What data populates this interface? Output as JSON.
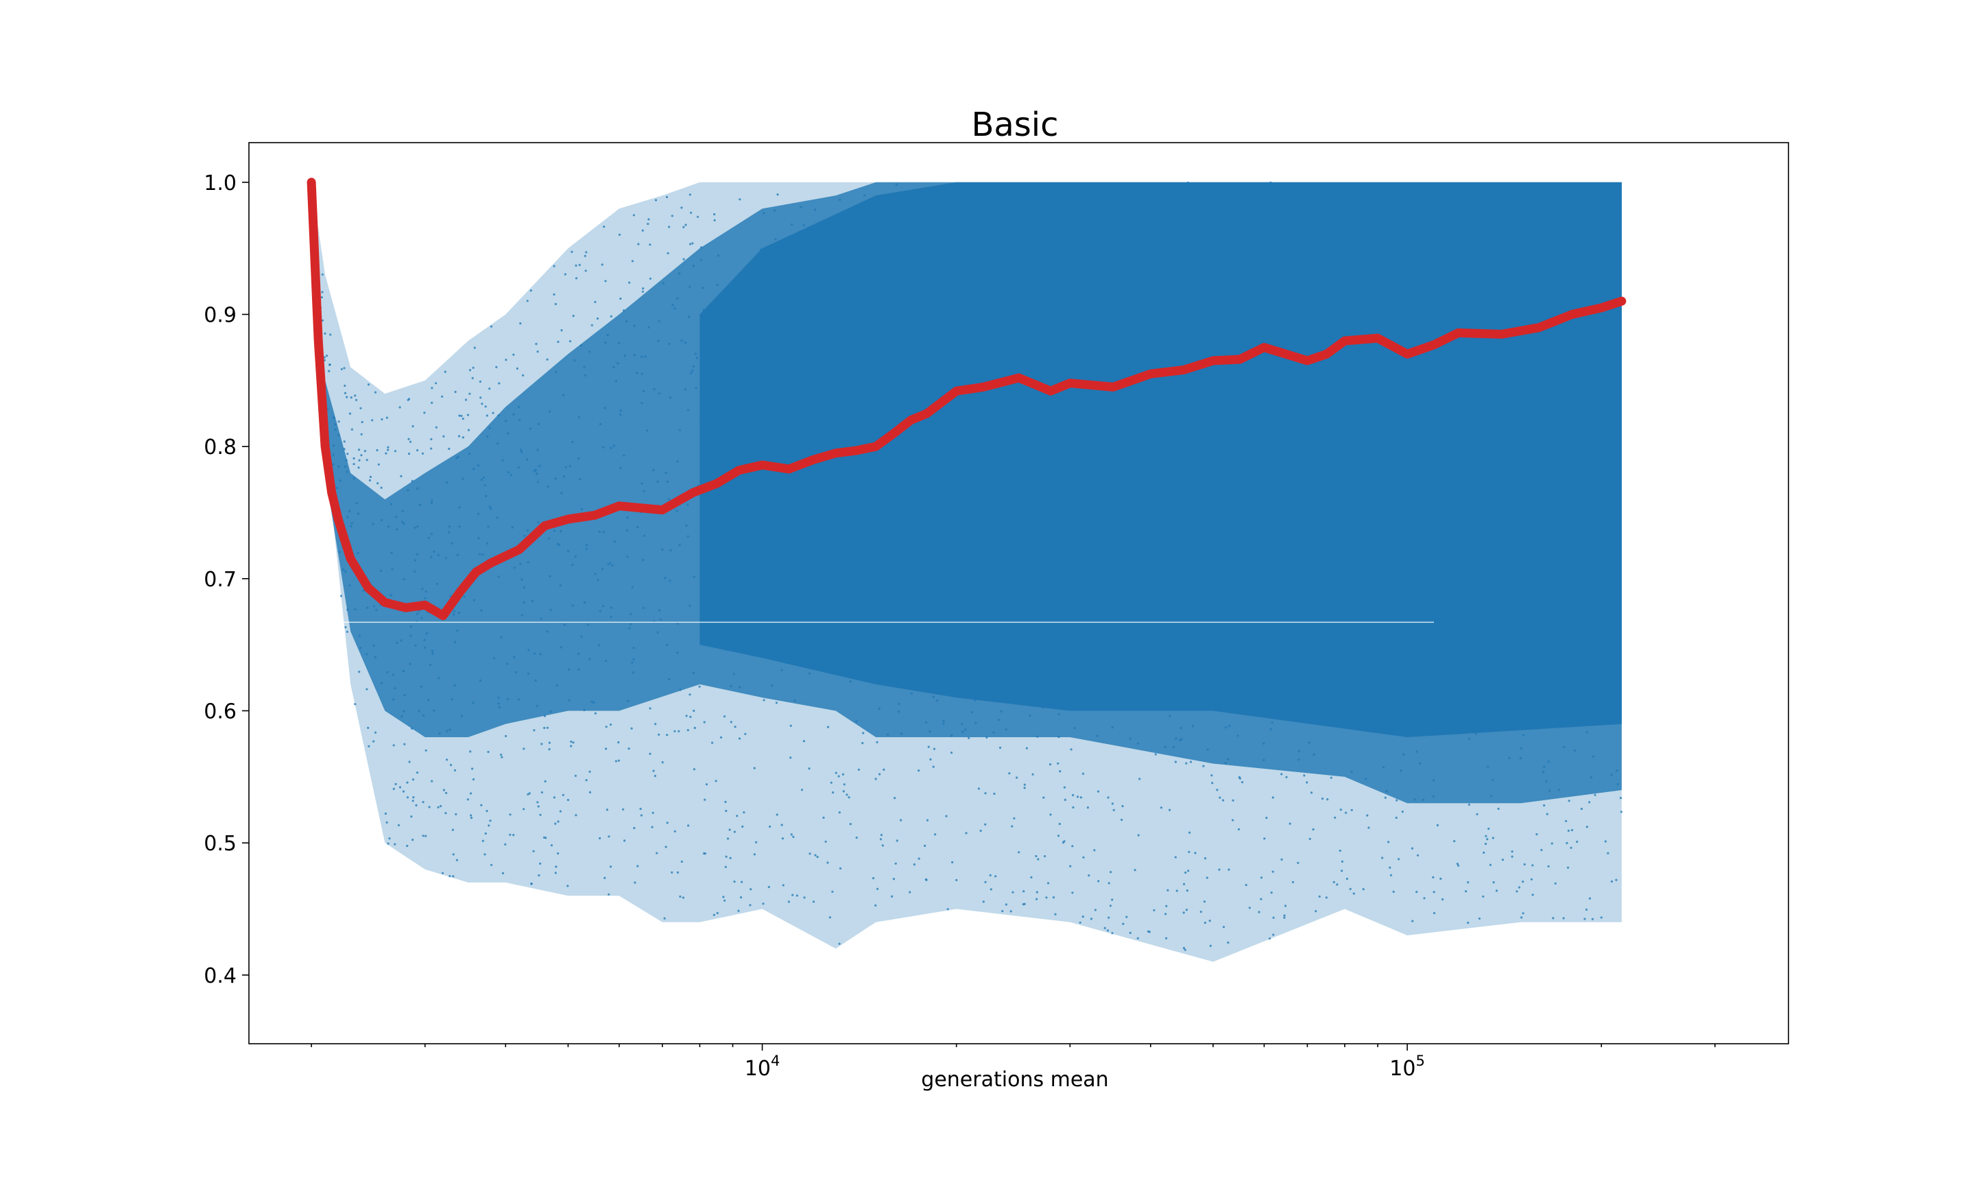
{
  "chart_data": {
    "type": "scatter",
    "title": "Basic",
    "xlabel": "generations mean",
    "ylabel": "",
    "xscale": "log",
    "xlim": [
      1600,
      390000
    ],
    "ylim": [
      0.348,
      1.03
    ],
    "x_ticks": [
      {
        "value": 10000,
        "base": "10",
        "exp": "4"
      },
      {
        "value": 100000,
        "base": "10",
        "exp": "5"
      }
    ],
    "y_ticks": [
      {
        "value": 0.4,
        "label": "0.4"
      },
      {
        "value": 0.5,
        "label": "0.5"
      },
      {
        "value": 0.6,
        "label": "0.6"
      },
      {
        "value": 0.7,
        "label": "0.7"
      },
      {
        "value": 0.8,
        "label": "0.8"
      },
      {
        "value": 0.9,
        "label": "0.9"
      },
      {
        "value": 1.0,
        "label": "1.0"
      }
    ],
    "grid": false,
    "legend": "none",
    "colors": {
      "scatter": "#1f77b4",
      "trend": "#d62728"
    },
    "scatter_series": {
      "name": "",
      "envelope": {
        "x": [
          2000,
          2100,
          2300,
          2600,
          3000,
          3500,
          4000,
          5000,
          6000,
          7000,
          8000,
          10000,
          13000,
          15000,
          20000,
          30000,
          50000,
          80000,
          100000,
          150000,
          215000
        ],
        "upper": [
          1.0,
          0.93,
          0.86,
          0.84,
          0.85,
          0.88,
          0.9,
          0.95,
          0.98,
          0.99,
          1.0,
          1.0,
          1.0,
          1.0,
          1.0,
          1.0,
          1.0,
          1.0,
          1.0,
          1.0,
          1.0
        ],
        "lower": [
          1.0,
          0.8,
          0.62,
          0.5,
          0.48,
          0.47,
          0.47,
          0.46,
          0.46,
          0.44,
          0.44,
          0.45,
          0.42,
          0.44,
          0.45,
          0.44,
          0.41,
          0.45,
          0.43,
          0.44,
          0.44
        ]
      },
      "dense_band": {
        "x": [
          2100,
          2300,
          2600,
          3000,
          3500,
          4000,
          5000,
          6000,
          8000,
          10000,
          13000,
          15000,
          20000,
          30000,
          50000,
          80000,
          100000,
          150000,
          215000
        ],
        "upper": [
          0.85,
          0.78,
          0.76,
          0.78,
          0.8,
          0.83,
          0.87,
          0.9,
          0.95,
          0.98,
          0.99,
          1.0,
          1.0,
          1.0,
          1.0,
          1.0,
          1.0,
          1.0,
          1.0
        ],
        "lower": [
          0.78,
          0.66,
          0.6,
          0.58,
          0.58,
          0.59,
          0.6,
          0.6,
          0.62,
          0.61,
          0.6,
          0.58,
          0.58,
          0.58,
          0.56,
          0.55,
          0.53,
          0.53,
          0.54
        ]
      },
      "horizontal_gap_y": 0.667
    },
    "trend_series": {
      "name": "",
      "x": [
        2000,
        2050,
        2100,
        2150,
        2200,
        2300,
        2450,
        2600,
        2800,
        3000,
        3200,
        3400,
        3600,
        3800,
        4200,
        4600,
        5000,
        5500,
        6000,
        7000,
        7800,
        8500,
        9200,
        10000,
        11000,
        12000,
        13000,
        14000,
        15000,
        16000,
        17000,
        18000,
        20000,
        22000,
        25000,
        28000,
        30000,
        35000,
        40000,
        45000,
        50000,
        55000,
        60000,
        70000,
        75000,
        80000,
        90000,
        100000,
        110000,
        120000,
        140000,
        160000,
        180000,
        200000,
        215000
      ],
      "y": [
        1.0,
        0.88,
        0.8,
        0.765,
        0.745,
        0.715,
        0.693,
        0.682,
        0.678,
        0.68,
        0.672,
        0.69,
        0.705,
        0.712,
        0.722,
        0.74,
        0.745,
        0.748,
        0.755,
        0.752,
        0.765,
        0.772,
        0.782,
        0.786,
        0.783,
        0.79,
        0.795,
        0.797,
        0.8,
        0.81,
        0.82,
        0.825,
        0.842,
        0.845,
        0.852,
        0.842,
        0.848,
        0.845,
        0.855,
        0.858,
        0.865,
        0.866,
        0.875,
        0.865,
        0.87,
        0.88,
        0.882,
        0.87,
        0.877,
        0.886,
        0.885,
        0.89,
        0.9,
        0.905,
        0.91
      ]
    }
  }
}
